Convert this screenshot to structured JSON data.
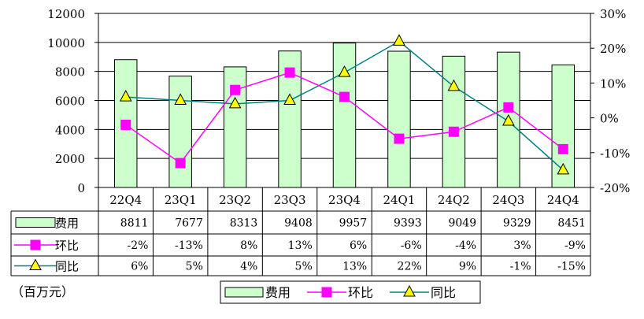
{
  "chart_data": {
    "type": "bar",
    "categories": [
      "22Q4",
      "23Q1",
      "23Q2",
      "23Q3",
      "23Q4",
      "24Q1",
      "24Q2",
      "24Q3",
      "24Q4"
    ],
    "series": [
      {
        "name": "费用",
        "type": "bar",
        "axis": "left",
        "color": "#ccffcc",
        "values": [
          8811,
          7677,
          8313,
          9408,
          9957,
          9393,
          9049,
          9329,
          8451
        ],
        "labels": [
          "8811",
          "7677",
          "8313",
          "9408",
          "9957",
          "9393",
          "9049",
          "9329",
          "8451"
        ]
      },
      {
        "name": "环比",
        "type": "line",
        "axis": "right",
        "color": "#ff00ff",
        "marker": "square",
        "values": [
          -2,
          -13,
          8,
          13,
          6,
          -6,
          -4,
          3,
          -9
        ],
        "labels": [
          "-2%",
          "-13%",
          "8%",
          "13%",
          "6%",
          "-6%",
          "-4%",
          "3%",
          "-9%"
        ]
      },
      {
        "name": "同比",
        "type": "line",
        "axis": "right",
        "color": "#008080",
        "marker_fill": "#ffff00",
        "marker": "triangle",
        "values": [
          6,
          5,
          4,
          5,
          13,
          22,
          9,
          -1,
          -15
        ],
        "labels": [
          "6%",
          "5%",
          "4%",
          "5%",
          "13%",
          "22%",
          "9%",
          "-1%",
          "-15%"
        ]
      }
    ],
    "y_left": {
      "ylim": [
        0,
        12000
      ],
      "ticks": [
        0,
        2000,
        4000,
        6000,
        8000,
        10000,
        12000
      ],
      "tick_labels": [
        "0",
        "2000",
        "4000",
        "6000",
        "8000",
        "10000",
        "12000"
      ]
    },
    "y_right": {
      "ylim": [
        -20,
        30
      ],
      "ticks": [
        -20,
        -10,
        0,
        10,
        20,
        30
      ],
      "tick_labels": [
        "-20%",
        "-10%",
        "0%",
        "10%",
        "20%",
        "30%"
      ]
    },
    "data_table": true,
    "grid": "horizontal",
    "legend_position": "bottom",
    "unit_note": "（百万元）"
  }
}
